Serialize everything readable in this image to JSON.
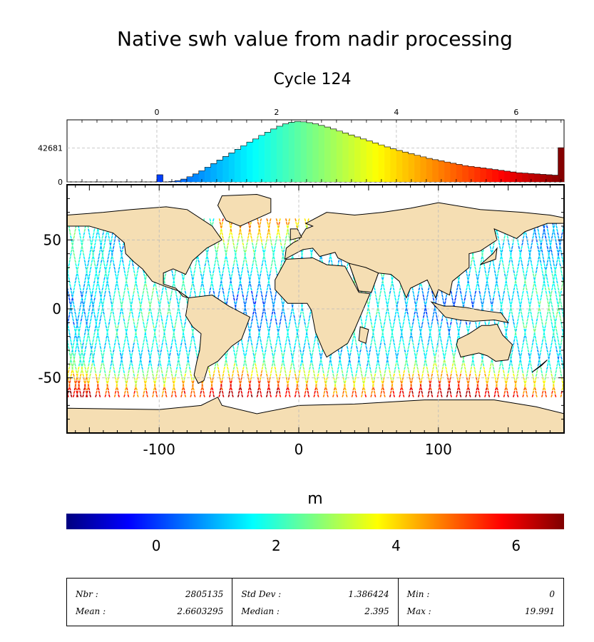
{
  "title": "Native swh value from nadir processing",
  "subtitle": "Cycle 124",
  "colors": {
    "land": "#f5deb3",
    "colormap": [
      "#00007f",
      "#0000ff",
      "#007fff",
      "#00ffff",
      "#7fff7f",
      "#ffff00",
      "#ff7f00",
      "#ff0000",
      "#7f0000"
    ]
  },
  "chart_data": [
    {
      "type": "bar",
      "name": "histogram",
      "x_ticks": [
        "0",
        "2",
        "4",
        "6"
      ],
      "xlim": [
        -1.5,
        6.8
      ],
      "y_ticks": [
        "0",
        "42681"
      ],
      "ylim": [
        0,
        78000
      ],
      "bins_start": -1.5,
      "bin_width": 0.1,
      "values": [
        0,
        0,
        0,
        0,
        0,
        0,
        0,
        0,
        0,
        0,
        0,
        0,
        0,
        0,
        0,
        9000,
        0,
        500,
        1500,
        3500,
        6500,
        10000,
        14000,
        18500,
        23000,
        27500,
        32000,
        36500,
        41000,
        45500,
        50000,
        54000,
        58500,
        62500,
        66500,
        70000,
        73000,
        75000,
        76000,
        75500,
        74500,
        73000,
        71000,
        69000,
        66500,
        64000,
        61500,
        59000,
        56500,
        54000,
        51500,
        49000,
        46500,
        44000,
        41500,
        39500,
        37500,
        35500,
        33500,
        31500,
        29500,
        28000,
        26500,
        25000,
        23500,
        22000,
        20500,
        19500,
        18500,
        17500,
        16500,
        15500,
        14500,
        13500,
        12500,
        11500,
        11000,
        10500,
        10000,
        9500,
        9000,
        8500,
        43000
      ]
    },
    {
      "type": "heatmap",
      "name": "swh-map",
      "x_ticks": [
        "-100",
        "0",
        "100"
      ],
      "xlim": [
        -166,
        190
      ],
      "y_ticks": [
        "50",
        "0",
        "-50"
      ],
      "ylim": [
        -90,
        90
      ],
      "grid": true,
      "colorbar": {
        "label": "m",
        "ticks": [
          "0",
          "2",
          "4",
          "6"
        ],
        "range": [
          -1.5,
          6.8
        ]
      }
    }
  ],
  "stats": [
    {
      "label": "Nbr :",
      "value": "2805135"
    },
    {
      "label": "Mean :",
      "value": "2.6603295"
    },
    {
      "label": "Std Dev :",
      "value": "1.386424"
    },
    {
      "label": "Median :",
      "value": "2.395"
    },
    {
      "label": "Min :",
      "value": "0"
    },
    {
      "label": "Max :",
      "value": "19.991"
    }
  ]
}
